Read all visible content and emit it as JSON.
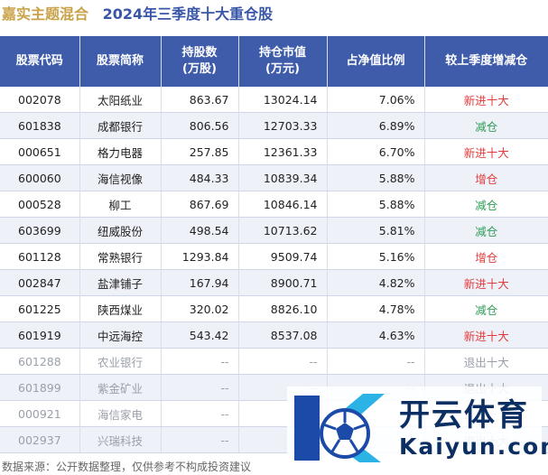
{
  "title": {
    "fund": "嘉实主题混合",
    "period": "2024年三季度十大重仓股"
  },
  "columns": [
    "股票代码",
    "股票简称",
    "持股数\n(万股)",
    "持仓市值\n(万元)",
    "占净值比例",
    "较上季度增减仓"
  ],
  "rows": [
    {
      "code": "002078",
      "name": "太阳纸业",
      "shares": "863.67",
      "value": "13024.14",
      "ratio": "7.06%",
      "change": "新进十大",
      "kind": "new"
    },
    {
      "code": "601838",
      "name": "成都银行",
      "shares": "806.56",
      "value": "12703.33",
      "ratio": "6.89%",
      "change": "减仓",
      "kind": "cut"
    },
    {
      "code": "000651",
      "name": "格力电器",
      "shares": "257.85",
      "value": "12361.33",
      "ratio": "6.70%",
      "change": "新进十大",
      "kind": "new"
    },
    {
      "code": "600060",
      "name": "海信视像",
      "shares": "484.33",
      "value": "10839.34",
      "ratio": "5.88%",
      "change": "增仓",
      "kind": "add"
    },
    {
      "code": "000528",
      "name": "柳工",
      "shares": "867.69",
      "value": "10846.14",
      "ratio": "5.88%",
      "change": "减仓",
      "kind": "cut"
    },
    {
      "code": "603699",
      "name": "纽威股份",
      "shares": "498.54",
      "value": "10713.62",
      "ratio": "5.81%",
      "change": "减仓",
      "kind": "cut"
    },
    {
      "code": "601128",
      "name": "常熟银行",
      "shares": "1293.84",
      "value": "9509.74",
      "ratio": "5.16%",
      "change": "增仓",
      "kind": "add"
    },
    {
      "code": "002847",
      "name": "盐津铺子",
      "shares": "167.94",
      "value": "8900.71",
      "ratio": "4.82%",
      "change": "新进十大",
      "kind": "new"
    },
    {
      "code": "601225",
      "name": "陕西煤业",
      "shares": "320.02",
      "value": "8826.10",
      "ratio": "4.78%",
      "change": "减仓",
      "kind": "cut"
    },
    {
      "code": "601919",
      "name": "中远海控",
      "shares": "543.42",
      "value": "8537.08",
      "ratio": "4.63%",
      "change": "新进十大",
      "kind": "new"
    },
    {
      "code": "601288",
      "name": "农业银行",
      "shares": "--",
      "value": "--",
      "ratio": "--",
      "change": "退出十大",
      "kind": "out"
    },
    {
      "code": "601899",
      "name": "紫金矿业",
      "shares": "--",
      "value": "--",
      "ratio": "--",
      "change": "退出十大",
      "kind": "out"
    },
    {
      "code": "000921",
      "name": "海信家电",
      "shares": "--",
      "value": "--",
      "ratio": "--",
      "change": "退出十大",
      "kind": "out"
    },
    {
      "code": "002937",
      "name": "兴瑞科技",
      "shares": "--",
      "value": "--",
      "ratio": "--",
      "change": "退出十大",
      "kind": "out"
    }
  ],
  "source": "数据来源：公开数据整理，仅供参考不构成投资建议",
  "brand": {
    "cn": "开云体育",
    "en": "Kaiyun.com"
  },
  "colors": {
    "header": "#3f5cab",
    "title_fund": "#c9a24a",
    "title_period": "#3a56a8",
    "increase": "#e23b3b",
    "decrease": "#2f9e57"
  }
}
